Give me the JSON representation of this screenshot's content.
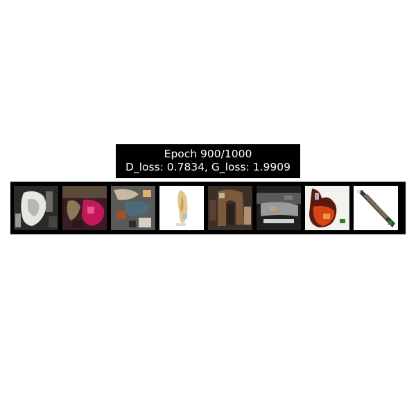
{
  "title": {
    "line1": "Epoch 900/1000",
    "line2": "D_loss: 0.7834, G_loss: 1.9909"
  },
  "samples": [
    {
      "name": "sample-1",
      "palette": [
        "#1a1a1a",
        "#e8e6e2",
        "#6b6b66",
        "#9a9894"
      ]
    },
    {
      "name": "sample-2",
      "palette": [
        "#3a1c22",
        "#c2185b",
        "#8a7a5a",
        "#2a1a1a"
      ]
    },
    {
      "name": "sample-3",
      "palette": [
        "#2b2b2b",
        "#c9b9a0",
        "#4c6a7a",
        "#a0522d"
      ]
    },
    {
      "name": "sample-4",
      "palette": [
        "#ffffff",
        "#e0c98a",
        "#c8a060",
        "#d9d9d9"
      ]
    },
    {
      "name": "sample-5",
      "palette": [
        "#2a2018",
        "#7a5a3a",
        "#5a4030",
        "#b09070"
      ]
    },
    {
      "name": "sample-6",
      "palette": [
        "#202020",
        "#9a9a9a",
        "#5a5a5a",
        "#d0d0d0"
      ]
    },
    {
      "name": "sample-7",
      "palette": [
        "#f4f2ee",
        "#d84315",
        "#5a1a10",
        "#e0a040"
      ]
    },
    {
      "name": "sample-8",
      "palette": [
        "#ffffff",
        "#3a3a3a",
        "#7a6a5a",
        "#e0e0e0"
      ]
    }
  ]
}
